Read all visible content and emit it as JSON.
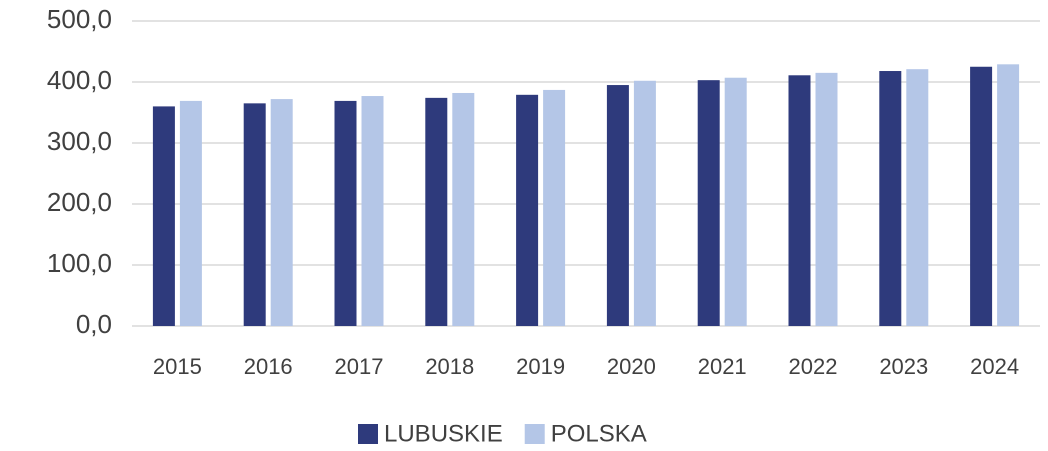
{
  "chart_data": {
    "type": "bar",
    "categories": [
      "2015",
      "2016",
      "2017",
      "2018",
      "2019",
      "2020",
      "2021",
      "2022",
      "2023",
      "2024"
    ],
    "series": [
      {
        "name": "LUBUSKIE",
        "color": "#2e3a7c",
        "values": [
          360,
          365,
          369,
          374,
          379,
          395,
          403,
          411,
          418,
          425
        ]
      },
      {
        "name": "POLSKA",
        "color": "#b4c6e7",
        "values": [
          369,
          372,
          377,
          382,
          387,
          402,
          407,
          415,
          421,
          429
        ]
      }
    ],
    "ylim": [
      0,
      500
    ],
    "yticks": [
      {
        "value": 0,
        "label": "0,0"
      },
      {
        "value": 100,
        "label": "100,0"
      },
      {
        "value": 200,
        "label": "200,0"
      },
      {
        "value": 300,
        "label": "300,0"
      },
      {
        "value": 400,
        "label": "400,0"
      },
      {
        "value": 500,
        "label": "500,0"
      }
    ],
    "grid": true,
    "legend": "bottom"
  }
}
